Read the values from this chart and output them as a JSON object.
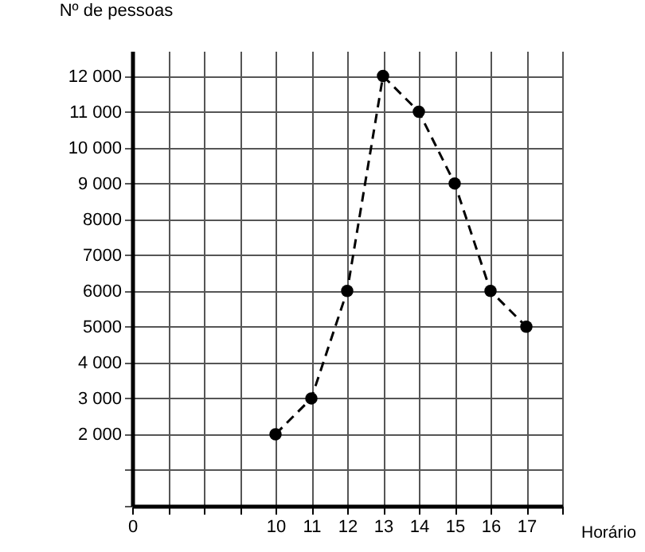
{
  "chart_data": {
    "type": "line",
    "xlabel": "Horário",
    "ylabel": "Nº de pessoas",
    "categories": [
      "0",
      null,
      null,
      null,
      "10",
      "11",
      "12",
      "13",
      "14",
      "15",
      "16",
      "17",
      null
    ],
    "series": [
      {
        "color": "#000000",
        "values": [
          null,
          null,
          null,
          null,
          2000,
          3000,
          6000,
          12000,
          11000,
          9000,
          6000,
          5000,
          null
        ]
      }
    ],
    "ylim": [
      0,
      12700
    ],
    "yticks": [
      {
        "value": 0,
        "label": null
      },
      {
        "value": 1000,
        "label": null
      },
      {
        "value": 2000,
        "label": "2 000"
      },
      {
        "value": 3000,
        "label": "3 000"
      },
      {
        "value": 4000,
        "label": "4 000"
      },
      {
        "value": 5000,
        "label": "5000"
      },
      {
        "value": 6000,
        "label": "6000"
      },
      {
        "value": 7000,
        "label": "7000"
      },
      {
        "value": 8000,
        "label": "8000"
      },
      {
        "value": 9000,
        "label": "9 000"
      },
      {
        "value": 10000,
        "label": "10 000"
      },
      {
        "value": 11000,
        "label": "11 000"
      },
      {
        "value": 12000,
        "label": "12 000"
      }
    ],
    "grid": true,
    "marker": "circle",
    "line_style": "dashed"
  }
}
